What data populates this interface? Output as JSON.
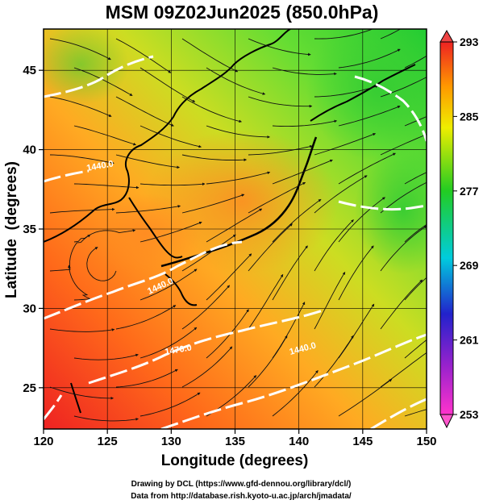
{
  "title": "MSM 09Z02Jun2025 (850.0hPa)",
  "map": {
    "lon_range": [
      120,
      150
    ],
    "lat_range": [
      22.4,
      47.6
    ],
    "x_label": "Longitude (degrees)",
    "y_label": "Latitude  (degrees)",
    "x_ticks": [
      "120",
      "125",
      "130",
      "135",
      "140",
      "145",
      "150"
    ],
    "y_ticks": [
      "25",
      "30",
      "35",
      "40",
      "45"
    ],
    "field": "temperature shading with wind streamlines and white geopotential height contours",
    "grid_lines": true
  },
  "colorbar": {
    "labels": [
      "293",
      "285",
      "277",
      "269",
      "261",
      "253"
    ],
    "range": [
      253,
      293
    ],
    "colors": [
      "#ff33cc",
      "#2222cc",
      "#00ccdd",
      "#22cc22",
      "#eeee00",
      "#ff8800",
      "#ee2222"
    ]
  },
  "contour_labels": [
    "1440.0",
    "1440.0",
    "1470.0",
    "1440.0"
  ],
  "credits": {
    "line1": "Drawing by DCL (https://www.gfd-dennou.org/library/dcl/)",
    "line2": "Data from http://database.rish.kyoto-u.ac.jp/arch/jmadata/"
  }
}
